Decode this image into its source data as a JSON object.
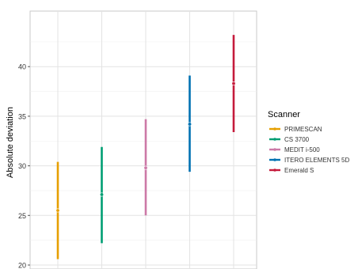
{
  "chart_data": {
    "type": "errorbar",
    "ylabel": "Absolute deviation",
    "ylim": [
      19.6,
      45.6
    ],
    "y_ticks": [
      20,
      25,
      30,
      35,
      40
    ],
    "y_tick_labels": [
      "20",
      "25",
      "30",
      "35",
      "40"
    ],
    "grid": true,
    "x_tick_labels_shown": false,
    "legend": {
      "title": "Scanner",
      "position": "right"
    },
    "series": [
      {
        "name": "PRIMESCAN",
        "color": "#E69F00",
        "mean": 25.5,
        "lower": 20.6,
        "upper": 30.4
      },
      {
        "name": "CS 3700",
        "color": "#009E73",
        "mean": 27.1,
        "lower": 22.2,
        "upper": 31.9
      },
      {
        "name": "MEDIT i-500",
        "color": "#CC79A7",
        "mean": 29.8,
        "lower": 25.0,
        "upper": 34.7
      },
      {
        "name": "ITERO ELEMENTS 5D",
        "color": "#0072B2",
        "mean": 34.2,
        "lower": 29.4,
        "upper": 39.1
      },
      {
        "name": "Emerald S",
        "color": "#C51B3C",
        "mean": 38.3,
        "lower": 33.4,
        "upper": 43.2
      }
    ]
  }
}
